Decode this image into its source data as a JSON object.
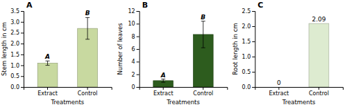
{
  "chart_data": [
    {
      "type": "bar",
      "title": "A",
      "x_label": "Treatments",
      "y_label": "Stem length in cm",
      "categories": [
        "Extract",
        "Control"
      ],
      "values": [
        1.1,
        2.7
      ],
      "errors": [
        0.1,
        0.5
      ],
      "colors": [
        "#c8d9a0",
        "#c8d9a0"
      ],
      "ylim": [
        0,
        3.5
      ],
      "yticks": [
        {
          "value": 0,
          "label": "0.0"
        },
        0.5,
        {
          "value": 1,
          "label": "1.0"
        },
        1.5,
        {
          "value": 2,
          "label": "2.0"
        },
        2.5,
        {
          "value": 3,
          "label": "3.0"
        },
        3.5
      ],
      "annotations": [
        {
          "text": "A",
          "x": "Extract"
        },
        {
          "text": "B",
          "x": "Control"
        }
      ]
    },
    {
      "type": "bar",
      "title": "B",
      "x_label": "Treatments",
      "y_label": "Number of leaves",
      "categories": [
        "Extract",
        "Control"
      ],
      "values": [
        1.0,
        8.3
      ],
      "errors": [
        0.25,
        2.1
      ],
      "colors": [
        "#2d5c1e",
        "#2d5c1e"
      ],
      "ylim": [
        0,
        12
      ],
      "yticks": [
        0,
        2,
        4,
        6,
        8,
        10,
        12
      ],
      "annotations": [
        {
          "text": "A",
          "x": "Extract"
        },
        {
          "text": "B",
          "x": "Control"
        }
      ]
    },
    {
      "type": "bar",
      "title": "C",
      "x_label": "Treatments",
      "y_label": "Root length in cm",
      "categories": [
        "Extract",
        "Control"
      ],
      "values": [
        0,
        2.09
      ],
      "colors": [
        "#ddebd0",
        "#ddebd0"
      ],
      "ylim": [
        0,
        2.5
      ],
      "yticks": [
        {
          "value": 0,
          "label": "0.0"
        },
        0.5,
        {
          "value": 1,
          "label": "1.0"
        },
        1.5,
        {
          "value": 2,
          "label": "2.0"
        },
        2.5
      ],
      "data_labels": true
    }
  ]
}
